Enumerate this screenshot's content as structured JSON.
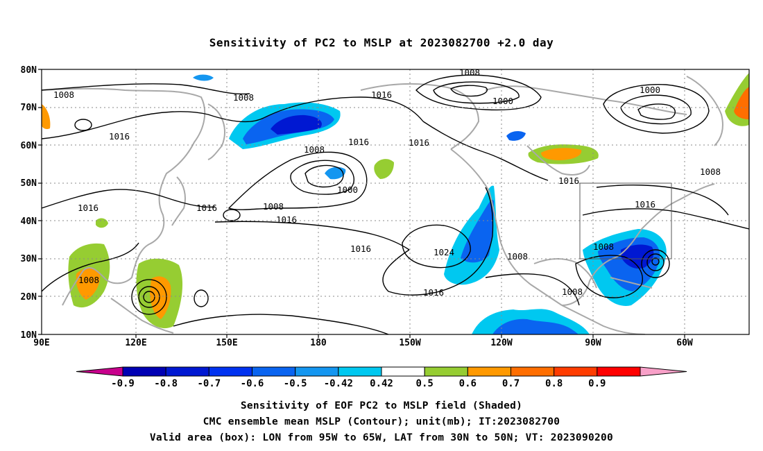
{
  "title": "Sensitivity of PC2 to MSLP at 2023082700 +2.0 day",
  "map": {
    "lon_ticks": [
      "90E",
      "120E",
      "150E",
      "180",
      "150W",
      "120W",
      "90W",
      "60W"
    ],
    "lat_ticks": [
      "80N",
      "70N",
      "60N",
      "50N",
      "40N",
      "30N",
      "20N",
      "10N"
    ],
    "contour_labels": [
      {
        "text": "1008"
      },
      {
        "text": "1008"
      },
      {
        "text": "1016"
      },
      {
        "text": "1016"
      },
      {
        "text": "1008"
      },
      {
        "text": "1000"
      },
      {
        "text": "1016"
      },
      {
        "text": "1016"
      },
      {
        "text": "1000"
      },
      {
        "text": "1008"
      },
      {
        "text": "1016"
      },
      {
        "text": "1016"
      },
      {
        "text": "1016"
      },
      {
        "text": "1008"
      },
      {
        "text": "1016"
      },
      {
        "text": "1016"
      },
      {
        "text": "1024"
      },
      {
        "text": "1008"
      },
      {
        "text": "1008"
      },
      {
        "text": "1016"
      },
      {
        "text": "1008"
      },
      {
        "text": "1008"
      },
      {
        "text": "1016"
      }
    ],
    "valid_box": {
      "lon": [
        "95W",
        "65W"
      ],
      "lat": [
        "30N",
        "50N"
      ]
    }
  },
  "colorbar": {
    "labels": [
      "-0.9",
      "-0.8",
      "-0.7",
      "-0.6",
      "-0.5",
      "-0.42",
      "0.42",
      "0.5",
      "0.6",
      "0.7",
      "0.8",
      "0.9"
    ],
    "colors": [
      "#c8008c",
      "#0000b4",
      "#0018d2",
      "#0032f0",
      "#0a64f0",
      "#1496f0",
      "#00c8f0",
      "#ffffff",
      "#96cd32",
      "#ff9900",
      "#ff6e00",
      "#ff3c00",
      "#ff0000",
      "#f8a0c8"
    ]
  },
  "captions": [
    "Sensitivity of EOF PC2 to MSLP field (Shaded)",
    "CMC ensemble mean MSLP (Contour); unit(mb); IT:2023082700",
    "Valid area (box): LON from 95W to 65W, LAT from 30N to 50N; VT: 2023090200"
  ]
}
